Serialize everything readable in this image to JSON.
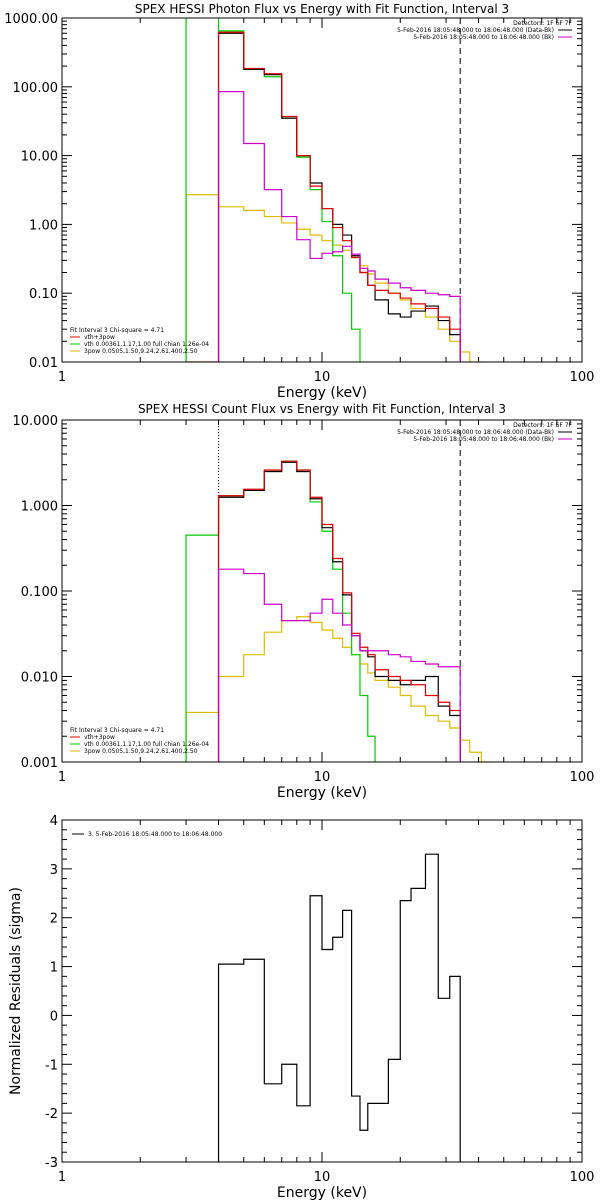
{
  "chart_data": [
    {
      "type": "line",
      "title": "SPEX HESSI Photon Flux vs Energy with Fit Function, Interval 3",
      "xlabel": "Energy (keV)",
      "ylabel": "",
      "xscale": "log",
      "yscale": "log",
      "xlim": [
        1,
        100
      ],
      "ylim": [
        0.01,
        1000
      ],
      "x_ticks": [
        "1",
        "10",
        "100"
      ],
      "y_ticks": [
        "0.01",
        "0.10",
        "1.00",
        "10.00",
        "100.00",
        "1000.00"
      ],
      "legend_top": [
        "Detectors: 1F 6F 7F",
        "5-Feb-2016 18:05:48.000 to 18:06:48.000 (Data-Bk)",
        "5-Feb-2016 18:05:48.000 to 18:06:48.000 (Bk)"
      ],
      "legend_top_colors": [
        "#000000",
        "#000000",
        "#cc00cc"
      ],
      "legend_fit": [
        "Fit Interval 3   Chi-square = 4.71",
        "vth+3pow",
        "vth 0.00361,1.17,1.00  full chian 1.26e-04",
        "3pow 0.0505,1.50,9.24,2.61,400,2.50"
      ],
      "legend_fit_colors": [
        "#000000",
        "#dd0000",
        "#00cc00",
        "#ddbb00"
      ],
      "vlines": [
        4.0,
        34.0
      ],
      "series": [
        {
          "name": "Data-Bk",
          "color": "#000000",
          "edges": [
            4,
            5,
            6,
            7,
            8,
            9,
            10,
            11,
            12,
            13,
            14,
            15,
            16,
            18,
            20,
            22,
            25,
            28,
            31,
            34
          ],
          "values": [
            600,
            180,
            150,
            35,
            10,
            4,
            1.7,
            1.0,
            0.7,
            0.35,
            0.2,
            0.13,
            0.08,
            0.05,
            0.045,
            0.055,
            0.065,
            0.04,
            0.025
          ]
        },
        {
          "name": "Bk",
          "color": "#cc00cc",
          "edges": [
            4,
            5,
            6,
            7,
            8,
            9,
            10,
            11,
            12,
            13,
            14,
            15,
            16,
            18,
            20,
            22,
            25,
            28,
            31,
            34
          ],
          "values": [
            85,
            15,
            3.2,
            1.3,
            0.6,
            0.32,
            0.38,
            0.4,
            0.48,
            0.37,
            0.23,
            0.21,
            0.16,
            0.14,
            0.12,
            0.11,
            0.1,
            0.095,
            0.09
          ]
        },
        {
          "name": "vth+3pow",
          "color": "#dd0000",
          "edges": [
            3,
            4,
            5,
            6,
            7,
            8,
            9,
            10,
            11,
            12,
            13,
            14,
            15,
            16,
            18,
            20,
            22,
            25,
            28,
            31,
            34
          ],
          "values": [
            0.01,
            620,
            185,
            155,
            37,
            10,
            3.6,
            1.7,
            0.9,
            0.58,
            0.33,
            0.2,
            0.13,
            0.11,
            0.1,
            0.085,
            0.07,
            0.06,
            0.045,
            0.03
          ]
        },
        {
          "name": "vth",
          "color": "#00cc00",
          "edges": [
            3,
            4,
            5,
            6,
            7,
            8,
            9,
            10,
            11,
            12,
            13,
            14,
            15
          ],
          "values": [
            2000,
            650,
            180,
            140,
            35,
            9.5,
            3.2,
            1.1,
            0.35,
            0.1,
            0.03,
            0.008
          ]
        },
        {
          "name": "3pow",
          "color": "#ddbb00",
          "edges": [
            3,
            4,
            5,
            6,
            7,
            8,
            9,
            10,
            11,
            12,
            13,
            14,
            15,
            16,
            18,
            20,
            22,
            25,
            28,
            31,
            34,
            37,
            41
          ],
          "values": [
            2.7,
            1.8,
            1.6,
            1.3,
            1.05,
            0.85,
            0.7,
            0.58,
            0.5,
            0.42,
            0.33,
            0.25,
            0.19,
            0.14,
            0.1,
            0.08,
            0.06,
            0.045,
            0.03,
            0.02,
            0.014,
            0.01
          ]
        }
      ]
    },
    {
      "type": "line",
      "title": "SPEX HESSI Count Flux vs Energy with Fit Function, Interval 3",
      "xlabel": "Energy (keV)",
      "ylabel": "",
      "xscale": "log",
      "yscale": "log",
      "xlim": [
        1,
        100
      ],
      "ylim": [
        0.001,
        10
      ],
      "x_ticks": [
        "1",
        "10",
        "100"
      ],
      "y_ticks": [
        "0.001",
        "0.010",
        "0.100",
        "1.000",
        "10.000"
      ],
      "legend_top": [
        "Detectors: 1F 6F 7F",
        "5-Feb-2016 18:05:48.000 to 18:06:48.000 (Data-Bk)",
        "5-Feb-2016 18:05:48.000 to 18:06:48.000 (Bk)"
      ],
      "legend_top_colors": [
        "#000000",
        "#000000",
        "#cc00cc"
      ],
      "legend_fit": [
        "Fit Interval 3   Chi-square = 4.71",
        "vth+3pow",
        "vth 0.00361,1.17,1.00  full chian 1.26e-04",
        "3pow 0.0505,1.50,9.24,2.61,400,2.50"
      ],
      "legend_fit_colors": [
        "#000000",
        "#dd0000",
        "#00cc00",
        "#ddbb00"
      ],
      "vlines": [
        4.0,
        34.0
      ],
      "series": [
        {
          "name": "Data-Bk",
          "color": "#000000",
          "edges": [
            4,
            5,
            6,
            7,
            8,
            9,
            10,
            11,
            12,
            13,
            14,
            15,
            16,
            18,
            20,
            22,
            25,
            28,
            31,
            34
          ],
          "values": [
            1.25,
            1.5,
            2.5,
            3.2,
            2.5,
            1.2,
            0.55,
            0.22,
            0.09,
            0.03,
            0.02,
            0.017,
            0.01,
            0.009,
            0.008,
            0.009,
            0.01,
            0.0045,
            0.0035
          ]
        },
        {
          "name": "Bk",
          "color": "#cc00cc",
          "edges": [
            4,
            5,
            6,
            7,
            8,
            9,
            10,
            11,
            12,
            13,
            14,
            15,
            16,
            18,
            20,
            22,
            25,
            28,
            31,
            34
          ],
          "values": [
            0.18,
            0.16,
            0.07,
            0.045,
            0.045,
            0.055,
            0.08,
            0.055,
            0.04,
            0.03,
            0.02,
            0.02,
            0.02,
            0.018,
            0.017,
            0.015,
            0.014,
            0.013,
            0.013
          ]
        },
        {
          "name": "vth+3pow",
          "color": "#dd0000",
          "edges": [
            4,
            5,
            6,
            7,
            8,
            9,
            10,
            11,
            12,
            13,
            14,
            15,
            16,
            18,
            20,
            22,
            25,
            28,
            31,
            34
          ],
          "values": [
            1.3,
            1.55,
            2.6,
            3.3,
            2.6,
            1.25,
            0.6,
            0.24,
            0.095,
            0.032,
            0.022,
            0.018,
            0.012,
            0.01,
            0.009,
            0.008,
            0.006,
            0.005,
            0.004
          ]
        },
        {
          "name": "vth",
          "color": "#00cc00",
          "edges": [
            3,
            4,
            5,
            6,
            7,
            8,
            9,
            10,
            11,
            12,
            13,
            14,
            15,
            16
          ],
          "values": [
            0.45,
            1.3,
            1.5,
            2.5,
            3.3,
            2.5,
            1.1,
            0.5,
            0.18,
            0.055,
            0.018,
            0.006,
            0.002
          ]
        },
        {
          "name": "3pow",
          "color": "#ddbb00",
          "edges": [
            3,
            4,
            5,
            6,
            7,
            8,
            9,
            10,
            11,
            12,
            13,
            14,
            15,
            16,
            18,
            20,
            22,
            25,
            28,
            31,
            34,
            37,
            41,
            45,
            50
          ],
          "values": [
            0.0038,
            0.01,
            0.018,
            0.033,
            0.045,
            0.05,
            0.043,
            0.035,
            0.028,
            0.022,
            0.018,
            0.014,
            0.011,
            0.009,
            0.0075,
            0.006,
            0.0045,
            0.0035,
            0.003,
            0.0025,
            0.0018,
            0.0013,
            0.001,
            0.0008
          ]
        }
      ]
    },
    {
      "type": "line",
      "title": "",
      "xlabel": "Energy (keV)",
      "ylabel": "Normalized Residuals (sigma)",
      "xscale": "log",
      "yscale": "linear",
      "xlim": [
        1,
        100
      ],
      "ylim": [
        -3,
        4
      ],
      "x_ticks": [
        "1",
        "10",
        "100"
      ],
      "y_ticks": [
        "-3",
        "-2",
        "-1",
        "0",
        "1",
        "2",
        "3",
        "4"
      ],
      "legend": [
        "3.  5-Feb-2016 18:05:48.000 to 18:06:48.000"
      ],
      "series": [
        {
          "name": "3.  5-Feb-2016 18:05:48.000 to 18:06:48.000",
          "color": "#000000",
          "edges": [
            4,
            5,
            6,
            7,
            8,
            9,
            10,
            11,
            12,
            13,
            14,
            15,
            16,
            18,
            20,
            22,
            25,
            28,
            31,
            34
          ],
          "values": [
            1.05,
            1.15,
            -1.4,
            -1.0,
            -1.85,
            2.45,
            1.35,
            1.6,
            2.15,
            -1.65,
            -2.35,
            -1.8,
            -1.8,
            -0.9,
            2.35,
            2.6,
            3.3,
            0.35,
            0.8
          ]
        }
      ]
    }
  ]
}
